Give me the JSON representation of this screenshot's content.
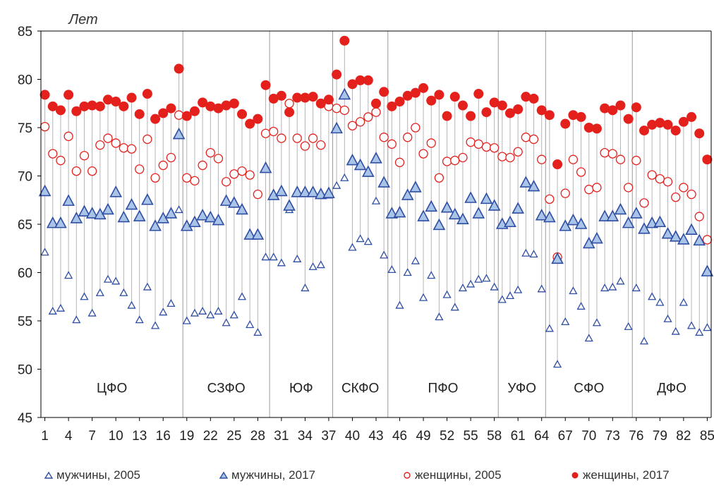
{
  "chart_data": {
    "type": "scatter",
    "ylabel": "Лет",
    "ylim": [
      45,
      85
    ],
    "yticks": [
      45,
      50,
      55,
      60,
      65,
      70,
      75,
      80,
      85
    ],
    "xlim": [
      0.5,
      85.5
    ],
    "xticks": [
      1,
      4,
      7,
      10,
      13,
      16,
      19,
      22,
      25,
      28,
      31,
      34,
      37,
      40,
      43,
      46,
      49,
      52,
      55,
      58,
      61,
      64,
      67,
      70,
      73,
      76,
      79,
      82,
      85
    ],
    "grid": "vertical lines connecting each region's min and max value",
    "legend_position": "bottom",
    "districts": [
      {
        "label": "ЦФО",
        "start": 1,
        "end": 18
      },
      {
        "label": "СЗФО",
        "start": 19,
        "end": 29
      },
      {
        "label": "ЮФ",
        "start": 30,
        "end": 37
      },
      {
        "label": "СКФО",
        "start": 38,
        "end": 44
      },
      {
        "label": "ПФО",
        "start": 45,
        "end": 58
      },
      {
        "label": "УФО",
        "start": 59,
        "end": 64
      },
      {
        "label": "СФО",
        "start": 65,
        "end": 75
      },
      {
        "label": "ДФО",
        "start": 76,
        "end": 85
      }
    ],
    "series": [
      {
        "name": "мужчины, 2005",
        "color": "#2e4ea3",
        "marker": "triangle-open",
        "values": [
          62.1,
          56.0,
          56.3,
          59.7,
          55.1,
          57.5,
          55.8,
          57.9,
          59.3,
          59.1,
          57.9,
          56.6,
          55.1,
          58.5,
          54.5,
          55.9,
          56.8,
          66.5,
          55.0,
          55.8,
          56.0,
          55.6,
          56.0,
          54.8,
          55.6,
          57.5,
          54.6,
          53.8,
          61.6,
          61.6,
          61.0,
          66.5,
          61.4,
          58.4,
          60.6,
          60.8,
          68.0,
          69.0,
          69.8,
          62.6,
          63.5,
          63.2,
          67.4,
          61.8,
          60.3,
          56.6,
          60.0,
          61.2,
          57.4,
          59.7,
          55.4,
          57.7,
          56.4,
          58.4,
          58.8,
          59.3,
          59.4,
          58.5,
          57.2,
          57.6,
          58.2,
          62.0,
          61.9,
          58.3,
          54.2,
          50.5,
          54.9,
          58.1,
          56.5,
          53.2,
          54.8,
          58.4,
          58.5,
          59.1,
          54.4,
          58.4,
          52.9,
          57.5,
          56.9,
          55.2,
          53.9,
          56.9,
          54.5,
          53.8,
          54.3
        ]
      },
      {
        "name": "мужчины, 2017",
        "color": "#2e4ea3",
        "marker": "triangle-filled",
        "values": [
          68.4,
          65.1,
          65.1,
          67.4,
          65.6,
          66.3,
          66.1,
          66.0,
          66.5,
          68.3,
          65.7,
          67.0,
          65.8,
          67.5,
          64.8,
          65.6,
          66.1,
          74.3,
          64.8,
          65.2,
          65.9,
          65.7,
          65.4,
          67.4,
          67.2,
          66.5,
          63.9,
          63.9,
          70.8,
          68.0,
          68.4,
          66.9,
          68.3,
          68.3,
          68.3,
          68.1,
          68.2,
          74.9,
          78.4,
          71.6,
          71.1,
          70.4,
          71.8,
          69.3,
          66.1,
          66.2,
          68.0,
          68.8,
          65.8,
          66.8,
          64.9,
          66.7,
          66.0,
          65.5,
          67.7,
          66.1,
          67.6,
          66.9,
          65.0,
          65.2,
          66.6,
          69.3,
          68.9,
          65.9,
          65.7,
          61.4,
          64.8,
          65.4,
          65.0,
          63.0,
          63.5,
          65.8,
          65.8,
          66.5,
          65.1,
          66.1,
          64.5,
          65.1,
          65.2,
          64.0,
          63.7,
          63.4,
          64.4,
          63.3,
          60.1
        ]
      },
      {
        "name": "женщины, 2005",
        "color": "#e4201c",
        "marker": "circle-open",
        "values": [
          75.1,
          72.3,
          71.6,
          74.1,
          70.5,
          72.1,
          70.5,
          73.2,
          73.9,
          73.4,
          72.9,
          72.8,
          70.7,
          73.8,
          69.8,
          71.1,
          71.9,
          76.3,
          69.8,
          69.5,
          71.1,
          72.4,
          71.8,
          69.4,
          70.2,
          70.5,
          70.1,
          68.1,
          74.4,
          74.6,
          73.9,
          77.5,
          73.9,
          73.1,
          73.9,
          73.2,
          77.2,
          77.0,
          76.8,
          75.2,
          75.6,
          76.1,
          76.6,
          74.0,
          73.3,
          71.4,
          74.0,
          75.0,
          72.3,
          73.4,
          69.8,
          71.5,
          71.6,
          71.9,
          73.5,
          73.3,
          73.0,
          72.9,
          72.0,
          71.9,
          72.5,
          74.0,
          73.8,
          71.7,
          67.6,
          61.6,
          68.2,
          71.7,
          70.4,
          68.6,
          68.8,
          72.4,
          72.3,
          71.7,
          68.8,
          71.6,
          67.2,
          70.1,
          69.7,
          69.4,
          67.8,
          68.8,
          68.1,
          65.8,
          63.4
        ]
      },
      {
        "name": "женщины, 2017",
        "color": "#e4201c",
        "marker": "circle-filled",
        "values": [
          78.4,
          77.2,
          76.8,
          78.4,
          76.7,
          77.2,
          77.3,
          77.2,
          77.9,
          77.7,
          77.2,
          78.1,
          76.4,
          78.5,
          75.9,
          76.5,
          77.0,
          81.1,
          76.2,
          76.7,
          77.6,
          77.2,
          77.0,
          77.3,
          77.5,
          76.4,
          75.4,
          75.9,
          79.4,
          78.0,
          78.3,
          76.6,
          78.1,
          78.1,
          78.2,
          77.5,
          77.9,
          80.5,
          84.0,
          79.5,
          79.9,
          79.9,
          77.5,
          78.7,
          77.2,
          77.7,
          78.3,
          78.6,
          79.1,
          77.8,
          78.4,
          76.2,
          78.2,
          77.3,
          76.2,
          78.5,
          76.6,
          77.6,
          77.3,
          76.5,
          76.9,
          78.2,
          78.0,
          76.8,
          76.3,
          71.2,
          75.4,
          76.3,
          76.1,
          75.0,
          74.9,
          77.0,
          76.8,
          77.3,
          75.9,
          77.1,
          74.7,
          75.3,
          75.5,
          75.3,
          74.7,
          75.6,
          76.1,
          74.4,
          71.7
        ]
      }
    ]
  }
}
